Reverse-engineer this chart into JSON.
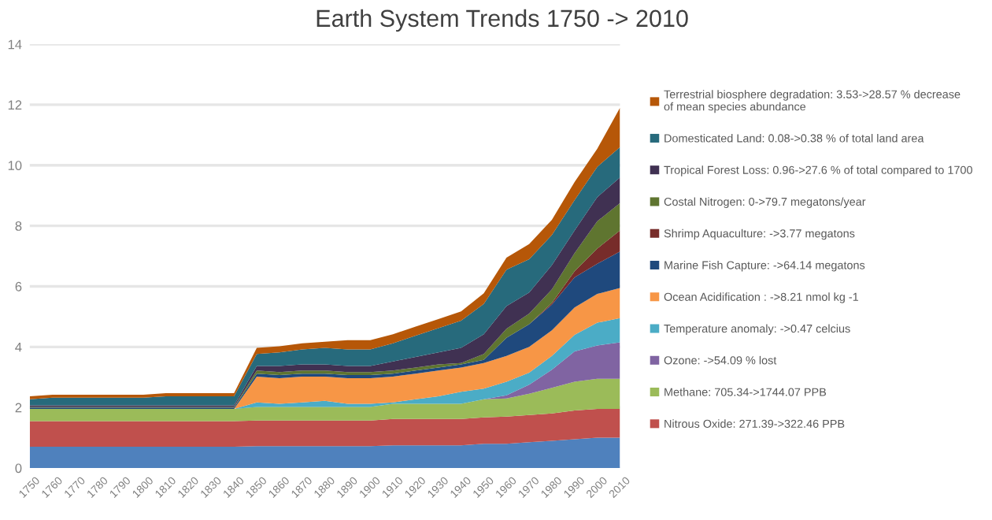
{
  "chart_data": {
    "type": "area",
    "stacked": true,
    "title": "Earth System Trends 1750 -> 2010",
    "categories": [
      "1750",
      "1760",
      "1770",
      "1780",
      "1790",
      "1800",
      "1810",
      "1820",
      "1830",
      "1840",
      "1850",
      "1860",
      "1870",
      "1880",
      "1890",
      "1900",
      "1910",
      "1920",
      "1930",
      "1940",
      "1950",
      "1960",
      "1970",
      "1980",
      "1990",
      "2000",
      "2010"
    ],
    "ylim": [
      0,
      14
    ],
    "yticks": [
      0,
      2,
      4,
      6,
      8,
      10,
      12,
      14
    ],
    "grid": "y",
    "legend": "right",
    "series": [
      {
        "color": "#4f81bd",
        "values": [
          0.7,
          0.7,
          0.7,
          0.7,
          0.7,
          0.7,
          0.7,
          0.7,
          0.7,
          0.7,
          0.72,
          0.72,
          0.72,
          0.72,
          0.72,
          0.72,
          0.75,
          0.75,
          0.75,
          0.75,
          0.8,
          0.8,
          0.85,
          0.9,
          0.95,
          1.0,
          1.0
        ]
      },
      {
        "name": "Nitrous Oxide: 271.39->322.46 PPB",
        "color": "#c0504d",
        "values": [
          0.85,
          0.85,
          0.85,
          0.85,
          0.85,
          0.85,
          0.85,
          0.85,
          0.85,
          0.85,
          0.85,
          0.85,
          0.85,
          0.85,
          0.85,
          0.85,
          0.87,
          0.87,
          0.87,
          0.87,
          0.87,
          0.9,
          0.9,
          0.9,
          0.95,
          0.95,
          0.95
        ]
      },
      {
        "name": "Methane: 705.34->1744.07 PPB",
        "color": "#9bbb59",
        "values": [
          0.4,
          0.4,
          0.4,
          0.4,
          0.4,
          0.4,
          0.4,
          0.4,
          0.4,
          0.4,
          0.45,
          0.45,
          0.45,
          0.45,
          0.45,
          0.45,
          0.5,
          0.5,
          0.5,
          0.5,
          0.6,
          0.6,
          0.7,
          0.85,
          0.95,
          1.0,
          1.0
        ]
      },
      {
        "name": "Ozone: ->54.09 % lost",
        "color": "#8064a2",
        "values": [
          0,
          0,
          0,
          0,
          0,
          0,
          0,
          0,
          0,
          0,
          0,
          0,
          0,
          0,
          0,
          0,
          0,
          0,
          0,
          0,
          0,
          0.1,
          0.3,
          0.6,
          1.0,
          1.1,
          1.2
        ]
      },
      {
        "name": "Temperature anomaly: ->0.47 celcius",
        "color": "#4bacc6",
        "values": [
          0,
          0,
          0,
          0,
          0,
          0,
          0,
          0,
          0,
          0,
          0.15,
          0.1,
          0.15,
          0.2,
          0.1,
          0.1,
          0.05,
          0.15,
          0.25,
          0.4,
          0.35,
          0.45,
          0.4,
          0.45,
          0.55,
          0.75,
          0.8
        ]
      },
      {
        "name": "Ocean Acidification : ->8.21 nmol kg -1",
        "color": "#f79646",
        "values": [
          0,
          0,
          0,
          0,
          0,
          0,
          0,
          0,
          0,
          0,
          0.85,
          0.85,
          0.85,
          0.8,
          0.85,
          0.85,
          0.85,
          0.85,
          0.85,
          0.8,
          0.85,
          0.85,
          0.85,
          0.85,
          0.9,
          0.95,
          1.0
        ]
      },
      {
        "name": "Marine Fish Capture: ->64.14 megatons",
        "color": "#1f497d",
        "values": [
          0.05,
          0.05,
          0.05,
          0.05,
          0.05,
          0.05,
          0.05,
          0.05,
          0.05,
          0.05,
          0.1,
          0.1,
          0.1,
          0.1,
          0.1,
          0.1,
          0.1,
          0.1,
          0.1,
          0.1,
          0.1,
          0.6,
          0.75,
          0.85,
          1.0,
          1.0,
          1.2
        ]
      },
      {
        "name": "Shrimp Aquaculture: ->3.77 megatons",
        "color": "#772c2a",
        "values": [
          0,
          0,
          0,
          0,
          0,
          0,
          0,
          0,
          0,
          0,
          0,
          0,
          0,
          0,
          0,
          0,
          0,
          0,
          0,
          0,
          0,
          0,
          0,
          0.05,
          0.2,
          0.5,
          0.7
        ]
      },
      {
        "name": "Costal Nitrogen: 0->79.7 megatons/year",
        "color": "#5f7530",
        "values": [
          0.02,
          0.02,
          0.02,
          0.02,
          0.02,
          0.02,
          0.02,
          0.02,
          0.02,
          0.02,
          0.1,
          0.1,
          0.1,
          0.1,
          0.1,
          0.1,
          0.1,
          0.1,
          0.1,
          0.05,
          0.2,
          0.3,
          0.35,
          0.45,
          0.6,
          0.9,
          0.9
        ]
      },
      {
        "name": "Tropical Forest Loss: 0.96->27.6 % of total compared to 1700",
        "color": "#403152",
        "values": [
          0.05,
          0.05,
          0.05,
          0.05,
          0.05,
          0.05,
          0.05,
          0.05,
          0.05,
          0.05,
          0.15,
          0.2,
          0.2,
          0.2,
          0.2,
          0.2,
          0.3,
          0.35,
          0.4,
          0.5,
          0.65,
          0.75,
          0.7,
          0.8,
          0.75,
          0.8,
          0.85
        ]
      },
      {
        "name": "Domesticated Land: 0.08->0.38 % of total land area",
        "color": "#276a7c",
        "values": [
          0.2,
          0.25,
          0.25,
          0.25,
          0.25,
          0.25,
          0.3,
          0.3,
          0.3,
          0.3,
          0.4,
          0.45,
          0.5,
          0.55,
          0.55,
          0.55,
          0.6,
          0.7,
          0.8,
          0.9,
          1.0,
          1.2,
          1.1,
          1.0,
          1.0,
          1.0,
          1.0
        ]
      },
      {
        "name": "Terrestrial biosphere degradation: 3.53->28.57 % decrease\nof mean species abundance",
        "color": "#b65708",
        "values": [
          0.1,
          0.1,
          0.1,
          0.1,
          0.1,
          0.1,
          0.1,
          0.1,
          0.1,
          0.1,
          0.2,
          0.2,
          0.2,
          0.2,
          0.3,
          0.3,
          0.3,
          0.3,
          0.3,
          0.3,
          0.35,
          0.4,
          0.5,
          0.5,
          0.6,
          0.6,
          1.3
        ]
      }
    ]
  }
}
